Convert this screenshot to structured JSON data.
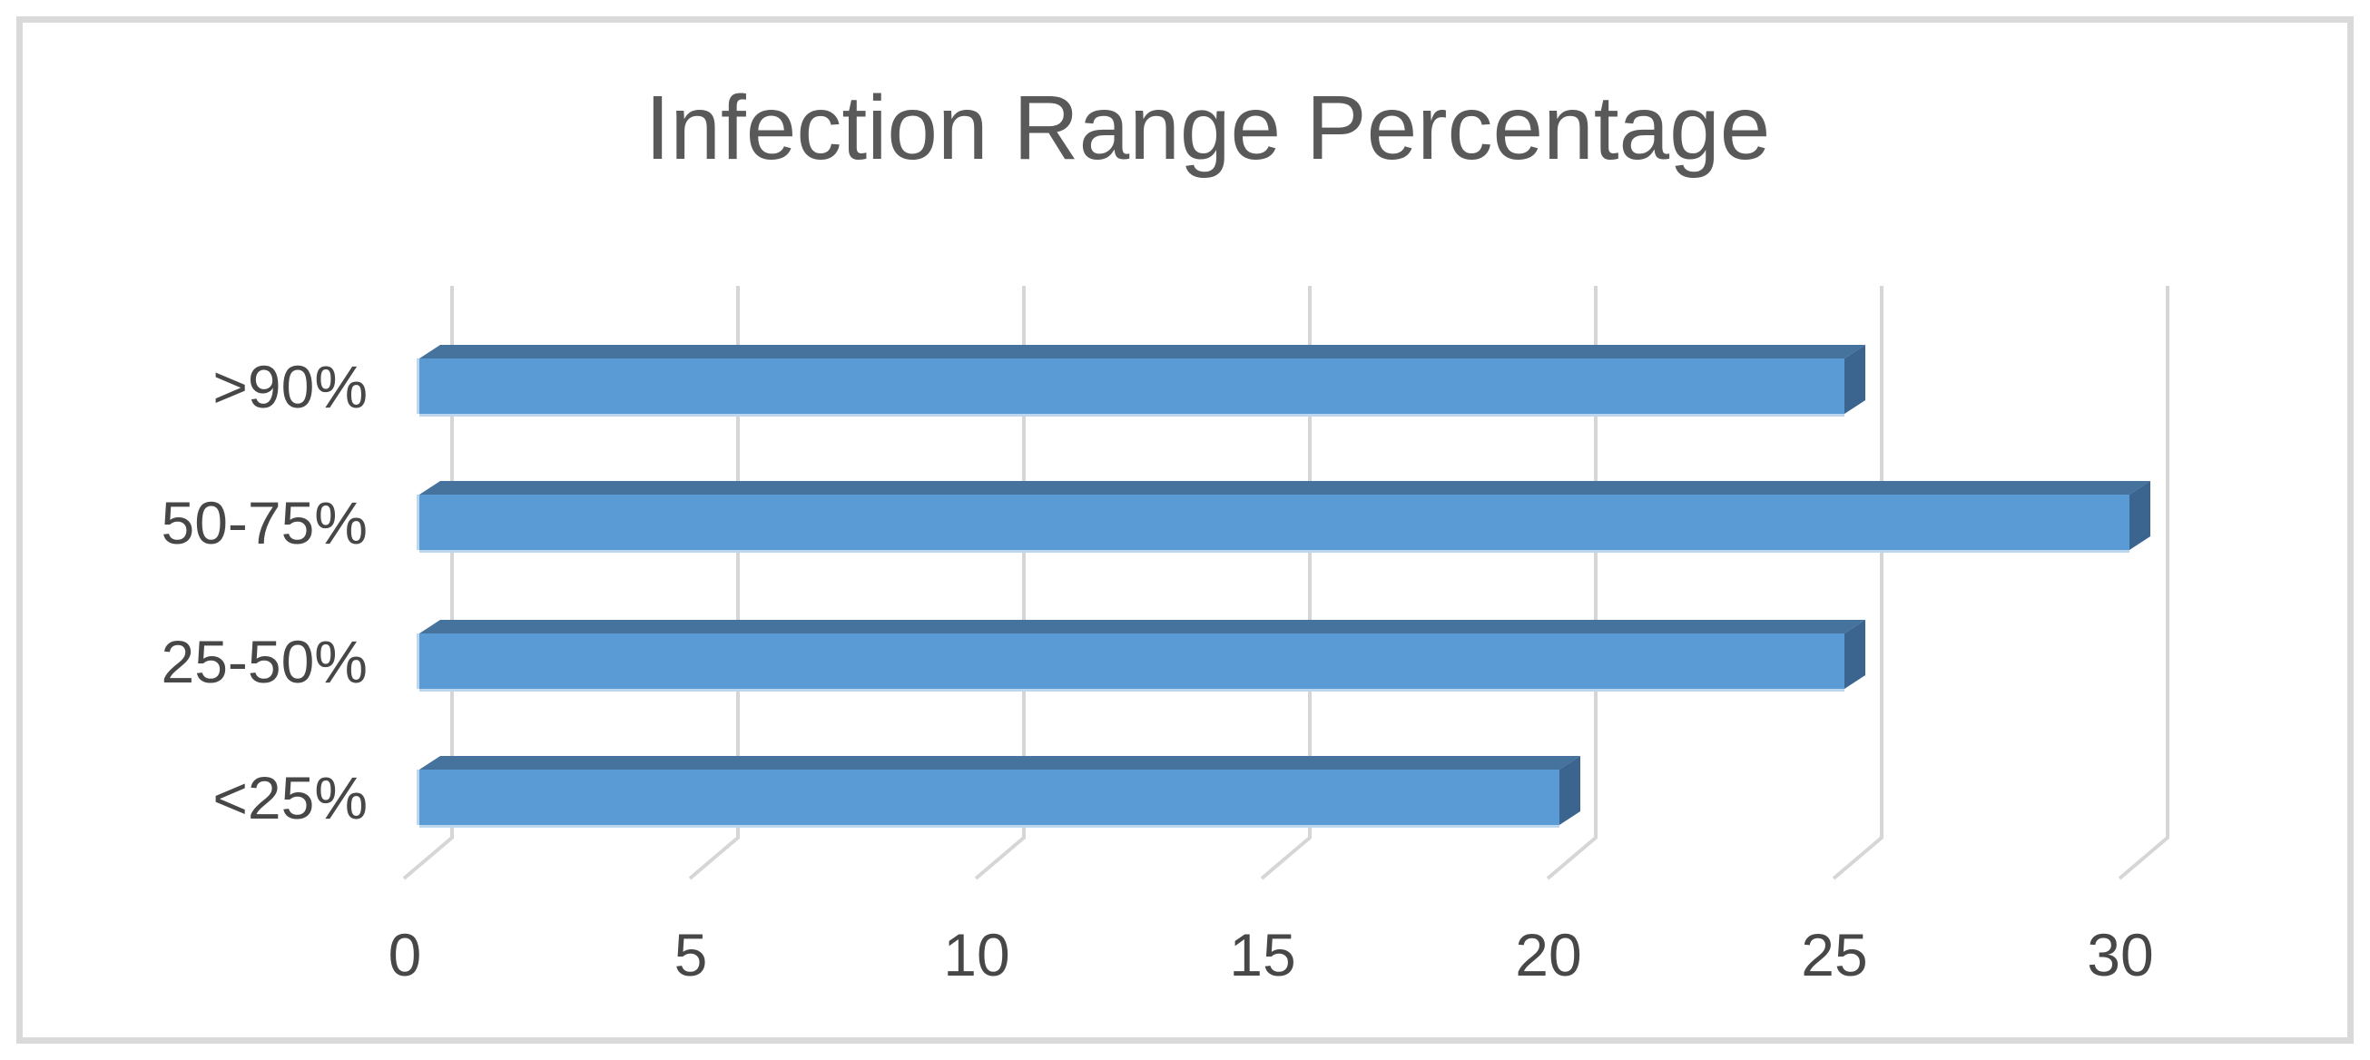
{
  "chart_data": {
    "type": "bar",
    "orientation": "horizontal",
    "style": "3d",
    "title": "Infection Range Percentage",
    "categories": [
      ">90%",
      "50-75%",
      "25-50%",
      "<25%"
    ],
    "values": [
      25,
      30,
      25,
      20
    ],
    "x_ticks": [
      "0",
      "5",
      "10",
      "15",
      "20",
      "25",
      "30"
    ],
    "x_tick_values": [
      0,
      5,
      10,
      15,
      20,
      25,
      30
    ],
    "xlim": [
      0,
      30
    ],
    "ylabel": "",
    "xlabel": "",
    "grid": true,
    "legend": false,
    "colors": {
      "bar_face": "#5B9BD5",
      "bar_top": "#46739E",
      "bar_side": "#3B648E",
      "bar_edge_highlight": "#BCD6EE",
      "gridline": "#D6D6D6",
      "frame_border": "#D9D9D9",
      "title_text": "#595959",
      "axis_text": "#474747"
    }
  }
}
